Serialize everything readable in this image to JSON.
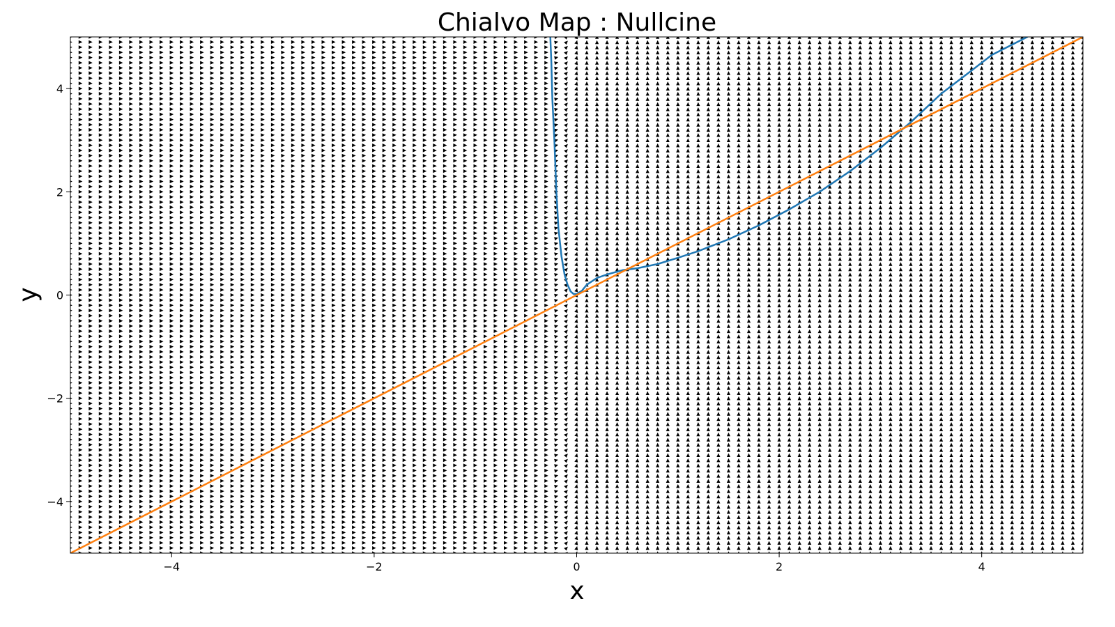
{
  "chart_data": {
    "type": "line",
    "title": "Chialvo Map : Nullcine",
    "xlabel": "x",
    "ylabel": "y",
    "xlim": [
      -5,
      5
    ],
    "ylim": [
      -5,
      5
    ],
    "grid": false,
    "x_ticks": [
      -4,
      -2,
      0,
      2,
      4
    ],
    "y_ticks": [
      -4,
      -2,
      0,
      2,
      4
    ],
    "x_tick_labels": [
      "−4",
      "−2",
      "0",
      "2",
      "4"
    ],
    "y_tick_labels": [
      "−4",
      "−2",
      "0",
      "2",
      "4"
    ],
    "vector_field": {
      "grid_step": 0.1,
      "arrow_color": "#000000",
      "description_of_direction": "rightward for x < -0.2, upward for x > 0"
    },
    "series": [
      {
        "color": "#1f77b4",
        "x": [
          -0.26,
          -0.25,
          -0.24,
          -0.22,
          -0.2,
          -0.18,
          -0.15,
          -0.12,
          -0.09,
          -0.06,
          -0.03,
          0.0,
          0.05,
          0.1,
          0.2,
          0.3,
          0.45,
          0.6,
          0.8,
          1.0,
          1.2,
          1.5,
          1.8,
          2.1,
          2.4,
          2.7,
          3.0,
          3.3,
          3.6,
          3.9,
          4.1,
          4.3,
          4.45
        ],
        "y": [
          5.0,
          4.5,
          3.8,
          3.0,
          2.0,
          1.3,
          0.75,
          0.4,
          0.2,
          0.07,
          0.02,
          0.02,
          0.08,
          0.2,
          0.33,
          0.4,
          0.48,
          0.52,
          0.6,
          0.72,
          0.85,
          1.08,
          1.35,
          1.66,
          2.0,
          2.4,
          2.85,
          3.35,
          3.9,
          4.35,
          4.65,
          4.85,
          5.0
        ]
      },
      {
        "color": "#ff7f0e",
        "x": [
          -5,
          5
        ],
        "y": [
          -5,
          5
        ]
      }
    ]
  }
}
